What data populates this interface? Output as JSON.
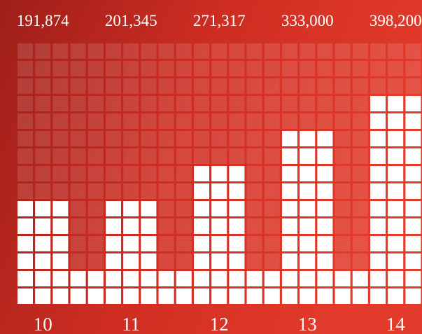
{
  "chart_data": {
    "type": "pictogram-bar",
    "categories": [
      "10",
      "11",
      "12",
      "13",
      "14"
    ],
    "values": [
      191874,
      201345,
      271317,
      333000,
      398200
    ],
    "value_labels": [
      "191,874",
      "201,345",
      "271,317",
      "333,000",
      "398,200"
    ],
    "color": "#ffffff"
  }
}
